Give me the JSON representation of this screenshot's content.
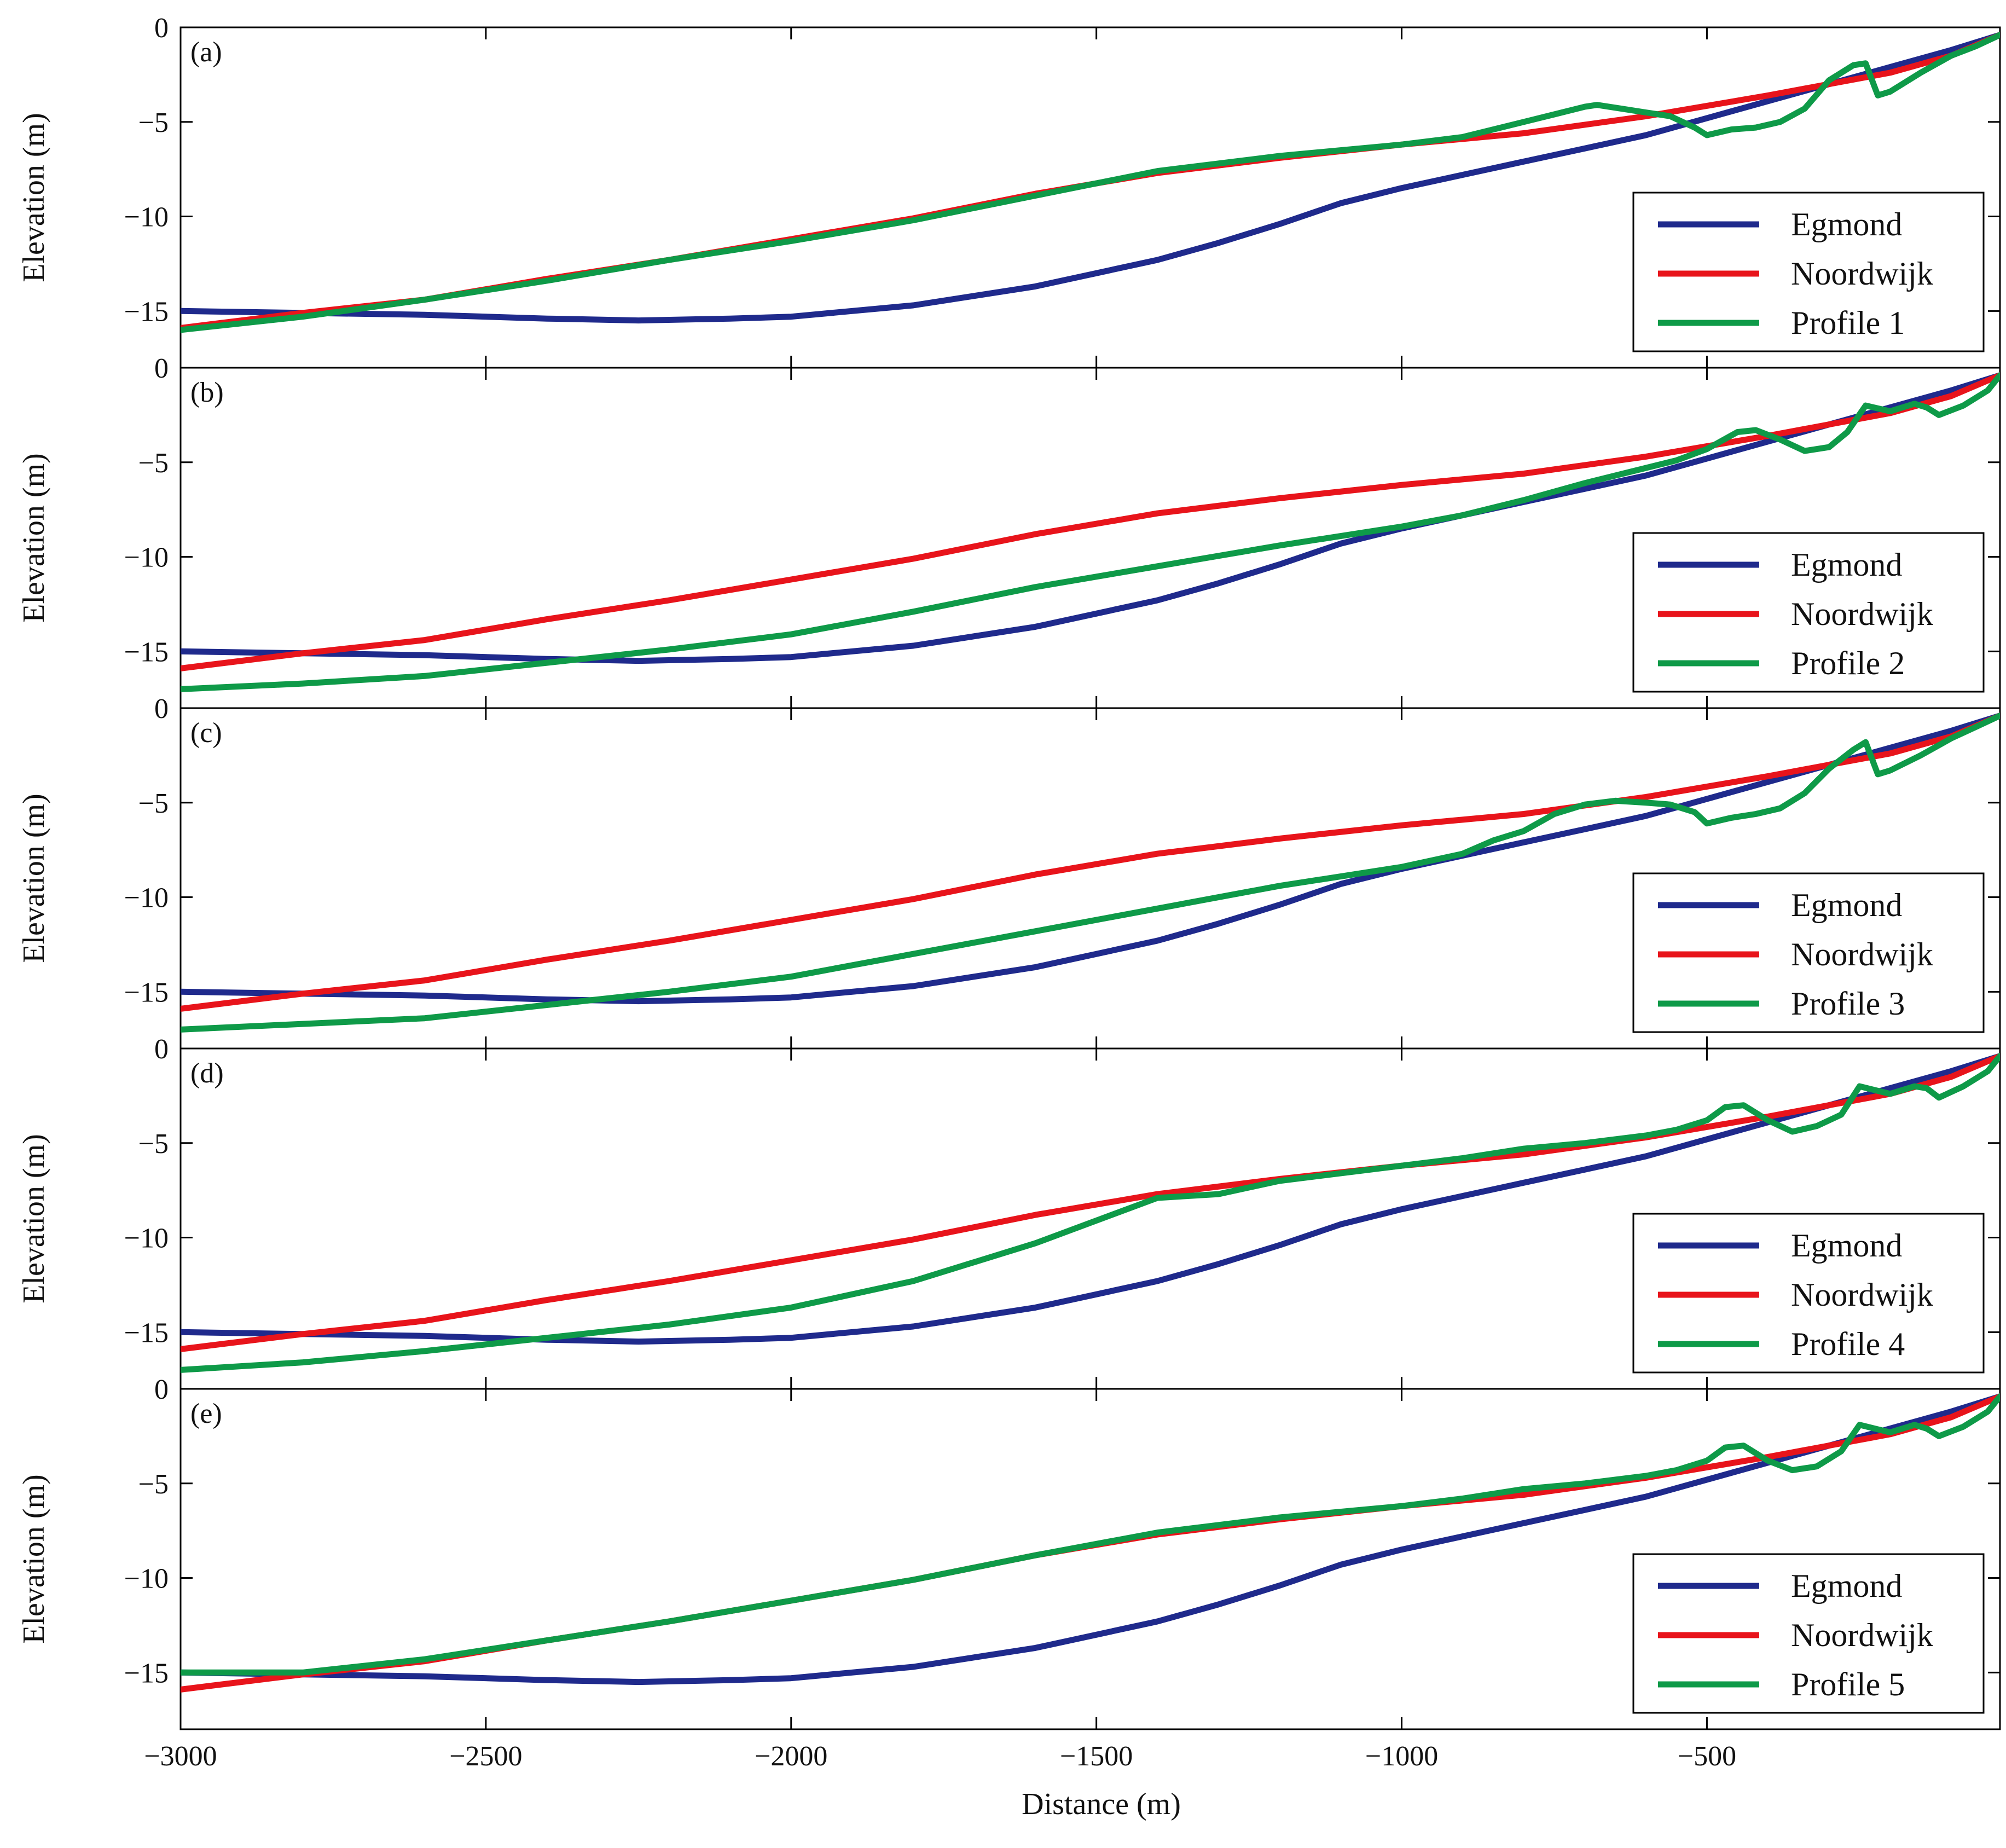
{
  "chart_data": {
    "type": "line",
    "xlabel": "Distance (m)",
    "ylabel": "Elevation (m)",
    "xlim": [
      -3000,
      -20
    ],
    "ylim": [
      -18,
      0
    ],
    "xticks": [
      -3000,
      -2500,
      -2000,
      -1500,
      -1000,
      -500
    ],
    "xtick_labels": [
      "−3000",
      "−2500",
      "−2000",
      "−1500",
      "−1000",
      "−500"
    ],
    "yticks": [
      0,
      -5,
      -10,
      -15
    ],
    "ytick_labels": [
      "0",
      "−5",
      "−10",
      "−15"
    ],
    "colors": {
      "Egmond": "#1f2a8c",
      "Noordwijk": "#e8141b",
      "Profile": "#0e9a48"
    },
    "legend_position": "lower-right",
    "base_series": [
      {
        "name": "Egmond",
        "points": [
          [
            -3000,
            -15.0
          ],
          [
            -2800,
            -15.1
          ],
          [
            -2600,
            -15.2
          ],
          [
            -2400,
            -15.4
          ],
          [
            -2250,
            -15.5
          ],
          [
            -2100,
            -15.4
          ],
          [
            -2000,
            -15.3
          ],
          [
            -1900,
            -15.0
          ],
          [
            -1800,
            -14.7
          ],
          [
            -1700,
            -14.2
          ],
          [
            -1600,
            -13.7
          ],
          [
            -1500,
            -13.0
          ],
          [
            -1400,
            -12.3
          ],
          [
            -1300,
            -11.4
          ],
          [
            -1200,
            -10.4
          ],
          [
            -1100,
            -9.3
          ],
          [
            -1000,
            -8.5
          ],
          [
            -900,
            -7.8
          ],
          [
            -800,
            -7.1
          ],
          [
            -700,
            -6.4
          ],
          [
            -600,
            -5.7
          ],
          [
            -500,
            -4.8
          ],
          [
            -400,
            -3.9
          ],
          [
            -300,
            -3.0
          ],
          [
            -200,
            -2.1
          ],
          [
            -100,
            -1.2
          ],
          [
            -20,
            -0.4
          ]
        ]
      },
      {
        "name": "Noordwijk",
        "points": [
          [
            -3000,
            -15.9
          ],
          [
            -2800,
            -15.1
          ],
          [
            -2600,
            -14.4
          ],
          [
            -2400,
            -13.3
          ],
          [
            -2200,
            -12.3
          ],
          [
            -2000,
            -11.2
          ],
          [
            -1800,
            -10.1
          ],
          [
            -1600,
            -8.8
          ],
          [
            -1400,
            -7.7
          ],
          [
            -1200,
            -6.9
          ],
          [
            -1000,
            -6.2
          ],
          [
            -800,
            -5.6
          ],
          [
            -600,
            -4.7
          ],
          [
            -400,
            -3.6
          ],
          [
            -200,
            -2.4
          ],
          [
            -100,
            -1.5
          ],
          [
            -20,
            -0.4
          ]
        ]
      }
    ],
    "panels": [
      {
        "label": "(a)",
        "legend": [
          "Egmond",
          "Noordwijk",
          "Profile 1"
        ],
        "profile": {
          "name": "Profile 1",
          "points": [
            [
              -3000,
              -16.0
            ],
            [
              -2800,
              -15.3
            ],
            [
              -2600,
              -14.4
            ],
            [
              -2400,
              -13.4
            ],
            [
              -2200,
              -12.3
            ],
            [
              -2000,
              -11.3
            ],
            [
              -1800,
              -10.2
            ],
            [
              -1600,
              -8.9
            ],
            [
              -1400,
              -7.6
            ],
            [
              -1200,
              -6.8
            ],
            [
              -1000,
              -6.2
            ],
            [
              -900,
              -5.8
            ],
            [
              -800,
              -5.0
            ],
            [
              -750,
              -4.6
            ],
            [
              -700,
              -4.2
            ],
            [
              -680,
              -4.1
            ],
            [
              -640,
              -4.3
            ],
            [
              -600,
              -4.5
            ],
            [
              -560,
              -4.7
            ],
            [
              -520,
              -5.3
            ],
            [
              -500,
              -5.7
            ],
            [
              -460,
              -5.4
            ],
            [
              -420,
              -5.3
            ],
            [
              -380,
              -5.0
            ],
            [
              -340,
              -4.3
            ],
            [
              -300,
              -2.8
            ],
            [
              -260,
              -2.0
            ],
            [
              -240,
              -1.9
            ],
            [
              -220,
              -3.6
            ],
            [
              -200,
              -3.4
            ],
            [
              -150,
              -2.4
            ],
            [
              -100,
              -1.5
            ],
            [
              -60,
              -1.0
            ],
            [
              -20,
              -0.4
            ]
          ]
        }
      },
      {
        "label": "(b)",
        "legend": [
          "Egmond",
          "Noordwijk",
          "Profile 2"
        ],
        "profile": {
          "name": "Profile 2",
          "points": [
            [
              -3000,
              -17.0
            ],
            [
              -2800,
              -16.7
            ],
            [
              -2600,
              -16.3
            ],
            [
              -2400,
              -15.6
            ],
            [
              -2200,
              -14.9
            ],
            [
              -2000,
              -14.1
            ],
            [
              -1800,
              -12.9
            ],
            [
              -1600,
              -11.6
            ],
            [
              -1400,
              -10.5
            ],
            [
              -1200,
              -9.4
            ],
            [
              -1000,
              -8.4
            ],
            [
              -900,
              -7.8
            ],
            [
              -800,
              -7.0
            ],
            [
              -700,
              -6.1
            ],
            [
              -600,
              -5.3
            ],
            [
              -550,
              -4.9
            ],
            [
              -500,
              -4.3
            ],
            [
              -450,
              -3.4
            ],
            [
              -420,
              -3.3
            ],
            [
              -380,
              -3.8
            ],
            [
              -340,
              -4.4
            ],
            [
              -300,
              -4.2
            ],
            [
              -270,
              -3.4
            ],
            [
              -240,
              -2.0
            ],
            [
              -200,
              -2.3
            ],
            [
              -160,
              -1.9
            ],
            [
              -140,
              -2.1
            ],
            [
              -120,
              -2.5
            ],
            [
              -80,
              -2.0
            ],
            [
              -40,
              -1.2
            ],
            [
              -20,
              -0.4
            ]
          ]
        }
      },
      {
        "label": "(c)",
        "legend": [
          "Egmond",
          "Noordwijk",
          "Profile 3"
        ],
        "profile": {
          "name": "Profile 3",
          "points": [
            [
              -3000,
              -17.0
            ],
            [
              -2800,
              -16.7
            ],
            [
              -2600,
              -16.4
            ],
            [
              -2400,
              -15.7
            ],
            [
              -2200,
              -15.0
            ],
            [
              -2000,
              -14.2
            ],
            [
              -1800,
              -13.0
            ],
            [
              -1600,
              -11.8
            ],
            [
              -1400,
              -10.6
            ],
            [
              -1200,
              -9.4
            ],
            [
              -1000,
              -8.4
            ],
            [
              -900,
              -7.7
            ],
            [
              -850,
              -7.0
            ],
            [
              -800,
              -6.5
            ],
            [
              -750,
              -5.6
            ],
            [
              -700,
              -5.1
            ],
            [
              -650,
              -4.9
            ],
            [
              -600,
              -5.0
            ],
            [
              -560,
              -5.1
            ],
            [
              -520,
              -5.5
            ],
            [
              -500,
              -6.1
            ],
            [
              -460,
              -5.8
            ],
            [
              -420,
              -5.6
            ],
            [
              -380,
              -5.3
            ],
            [
              -340,
              -4.5
            ],
            [
              -300,
              -3.2
            ],
            [
              -260,
              -2.2
            ],
            [
              -240,
              -1.8
            ],
            [
              -220,
              -3.5
            ],
            [
              -200,
              -3.3
            ],
            [
              -150,
              -2.5
            ],
            [
              -100,
              -1.6
            ],
            [
              -60,
              -1.0
            ],
            [
              -20,
              -0.4
            ]
          ]
        }
      },
      {
        "label": "(d)",
        "legend": [
          "Egmond",
          "Noordwijk",
          "Profile 4"
        ],
        "profile": {
          "name": "Profile 4",
          "points": [
            [
              -3000,
              -17.0
            ],
            [
              -2800,
              -16.6
            ],
            [
              -2600,
              -16.0
            ],
            [
              -2400,
              -15.3
            ],
            [
              -2200,
              -14.6
            ],
            [
              -2000,
              -13.7
            ],
            [
              -1800,
              -12.3
            ],
            [
              -1600,
              -10.3
            ],
            [
              -1400,
              -7.9
            ],
            [
              -1300,
              -7.7
            ],
            [
              -1200,
              -7.0
            ],
            [
              -1000,
              -6.2
            ],
            [
              -900,
              -5.8
            ],
            [
              -800,
              -5.3
            ],
            [
              -700,
              -5.0
            ],
            [
              -600,
              -4.6
            ],
            [
              -550,
              -4.3
            ],
            [
              -500,
              -3.8
            ],
            [
              -470,
              -3.1
            ],
            [
              -440,
              -3.0
            ],
            [
              -400,
              -3.8
            ],
            [
              -360,
              -4.4
            ],
            [
              -320,
              -4.1
            ],
            [
              -280,
              -3.5
            ],
            [
              -250,
              -2.0
            ],
            [
              -200,
              -2.4
            ],
            [
              -160,
              -2.0
            ],
            [
              -140,
              -2.1
            ],
            [
              -120,
              -2.6
            ],
            [
              -80,
              -2.0
            ],
            [
              -40,
              -1.2
            ],
            [
              -20,
              -0.4
            ]
          ]
        }
      },
      {
        "label": "(e)",
        "legend": [
          "Egmond",
          "Noordwijk",
          "Profile 5"
        ],
        "profile": {
          "name": "Profile 5",
          "points": [
            [
              -3000,
              -15.0
            ],
            [
              -2800,
              -15.0
            ],
            [
              -2600,
              -14.3
            ],
            [
              -2400,
              -13.3
            ],
            [
              -2200,
              -12.3
            ],
            [
              -2000,
              -11.2
            ],
            [
              -1800,
              -10.1
            ],
            [
              -1600,
              -8.8
            ],
            [
              -1400,
              -7.6
            ],
            [
              -1200,
              -6.8
            ],
            [
              -1000,
              -6.2
            ],
            [
              -900,
              -5.8
            ],
            [
              -800,
              -5.3
            ],
            [
              -700,
              -5.0
            ],
            [
              -600,
              -4.6
            ],
            [
              -550,
              -4.3
            ],
            [
              -500,
              -3.8
            ],
            [
              -470,
              -3.1
            ],
            [
              -440,
              -3.0
            ],
            [
              -400,
              -3.8
            ],
            [
              -360,
              -4.3
            ],
            [
              -320,
              -4.1
            ],
            [
              -280,
              -3.3
            ],
            [
              -250,
              -1.9
            ],
            [
              -200,
              -2.3
            ],
            [
              -160,
              -1.9
            ],
            [
              -140,
              -2.1
            ],
            [
              -120,
              -2.5
            ],
            [
              -80,
              -2.0
            ],
            [
              -40,
              -1.2
            ],
            [
              -20,
              -0.4
            ]
          ]
        }
      }
    ]
  }
}
